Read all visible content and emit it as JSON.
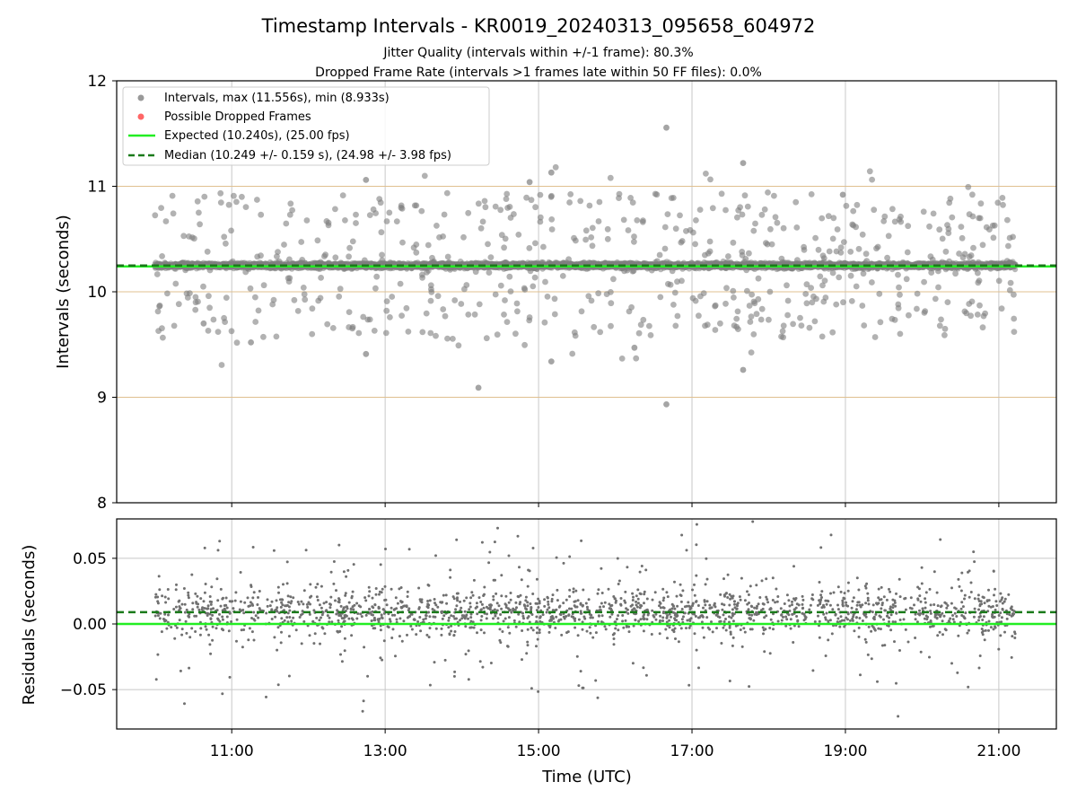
{
  "title": "Timestamp Intervals - KR0019_20240313_095658_604972",
  "subtitle_1": "Jitter Quality (intervals within +/-1 frame): 80.3%",
  "subtitle_2": "Dropped Frame Rate (intervals >1 frames late within 50 FF files): 0.0%",
  "colors": {
    "points": "#7f7f7f",
    "dropped": "#ff6666",
    "expected": "#22ee22",
    "median": "#1a7a1a",
    "hgrid_top": "#e0c090",
    "grid": "#c8c8c8"
  },
  "chart_data": [
    {
      "type": "scatter",
      "xlabel": "",
      "ylabel": "Intervals (seconds)",
      "xlim": [
        "09:30",
        "21:45"
      ],
      "ylim": [
        8,
        12
      ],
      "y_ticks": [
        "8",
        "9",
        "10",
        "11",
        "12"
      ],
      "x_ticks": [
        "11:00",
        "13:00",
        "15:00",
        "17:00",
        "19:00",
        "21:00"
      ],
      "grid": true,
      "legend_placement": "upper-left",
      "legend": [
        {
          "label": "Intervals, max (11.556s), min (8.933s)",
          "marker": "dot",
          "color": "#999999"
        },
        {
          "label": "Possible Dropped Frames",
          "marker": "dot",
          "color": "#ff6666"
        },
        {
          "label": "Expected (10.240s), (25.00 fps)",
          "marker": "line",
          "color": "#22ee22"
        },
        {
          "label": "Median (10.249 +/- 0.159 s), (24.98 +/- 3.98 fps)",
          "marker": "dashed",
          "color": "#1a7a1a"
        }
      ],
      "expected": 10.24,
      "median": 10.249,
      "max": 11.556,
      "min": 8.933,
      "dropped_frames": 0,
      "time_start": "10:00",
      "time_end": "21:13",
      "outliers": [
        {
          "t": "16:40",
          "y": 11.556
        },
        {
          "t": "16:40",
          "y": 8.933
        },
        {
          "t": "14:13",
          "y": 9.09
        },
        {
          "t": "17:40",
          "y": 11.22
        },
        {
          "t": "17:40",
          "y": 9.26
        },
        {
          "t": "12:45",
          "y": 11.06
        },
        {
          "t": "12:45",
          "y": 9.41
        },
        {
          "t": "14:53",
          "y": 11.04
        },
        {
          "t": "15:10",
          "y": 11.13
        },
        {
          "t": "15:10",
          "y": 9.34
        },
        {
          "t": "16:15",
          "y": 9.47
        },
        {
          "t": "18:58",
          "y": 10.92
        },
        {
          "t": "10:38",
          "y": 9.7
        },
        {
          "t": "11:15",
          "y": 9.52
        }
      ]
    },
    {
      "type": "scatter",
      "xlabel": "Time (UTC)",
      "ylabel": "Residuals (seconds)",
      "xlim": [
        "09:30",
        "21:45"
      ],
      "ylim": [
        -0.08,
        0.08
      ],
      "y_ticks": [
        "−0.05",
        "0.00",
        "0.05"
      ],
      "x_ticks": [
        "11:00",
        "13:00",
        "15:00",
        "17:00",
        "19:00",
        "21:00"
      ],
      "grid": true,
      "expected_residual": 0.0,
      "median_residual": 0.009
    }
  ]
}
